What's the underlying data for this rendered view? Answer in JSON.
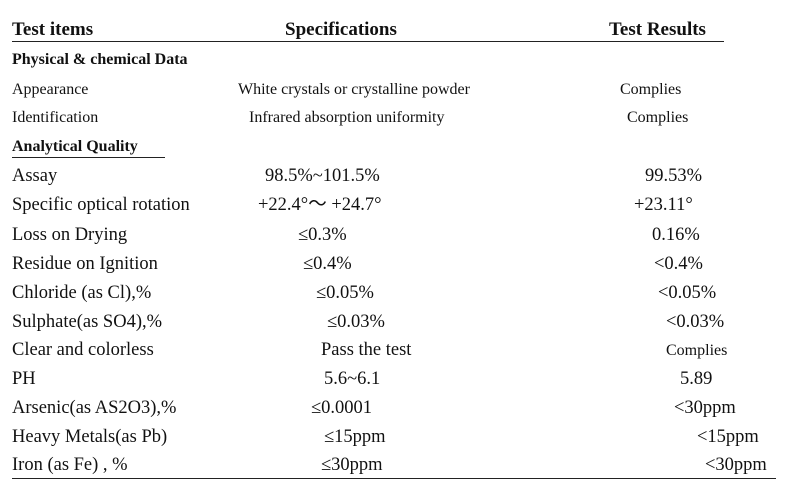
{
  "header": {
    "col1": "Test items",
    "col2": "Specifications",
    "col3": "Test Results"
  },
  "sections": [
    {
      "title": "Physical & chemical Data",
      "rows": [
        {
          "item": "Appearance",
          "spec": "White crystals or crystalline powder",
          "result": "Complies"
        },
        {
          "item": "Identification",
          "spec": "Infrared absorption uniformity",
          "result": "Complies"
        }
      ]
    },
    {
      "title": "Analytical Quality",
      "rows": [
        {
          "item": "Assay",
          "spec": "98.5%~101.5%",
          "result": "99.53%"
        },
        {
          "item": "Specific optical rotation",
          "spec": "+22.4°～ +24.7°",
          "result": "+23.11°"
        },
        {
          "item": "Loss on Drying",
          "spec": "≤0.3%",
          "result": "0.16%"
        },
        {
          "item": "Residue on Ignition",
          "spec": "≤0.4%",
          "result": "<0.4%"
        },
        {
          "item": "Chloride (as Cl),%",
          "spec": "≤0.05%",
          "result": "<0.05%"
        },
        {
          "item": "Sulphate(as SO4),%",
          "spec": "≤0.03%",
          "result": "<0.03%"
        },
        {
          "item": "Clear and colorless",
          "spec": "Pass the test",
          "result": "Complies"
        },
        {
          "item": "PH",
          "spec": "5.6~6.1",
          "result": "5.89"
        },
        {
          "item": "Arsenic(as AS2O3),%",
          "spec": "≤0.0001",
          "result": "<30ppm"
        },
        {
          "item": "Heavy Metals(as Pb)",
          "spec": "≤15ppm",
          "result": "<15ppm"
        },
        {
          "item": "Iron (as Fe) , %",
          "spec": "≤30ppm",
          "result": "<30ppm"
        }
      ]
    }
  ]
}
